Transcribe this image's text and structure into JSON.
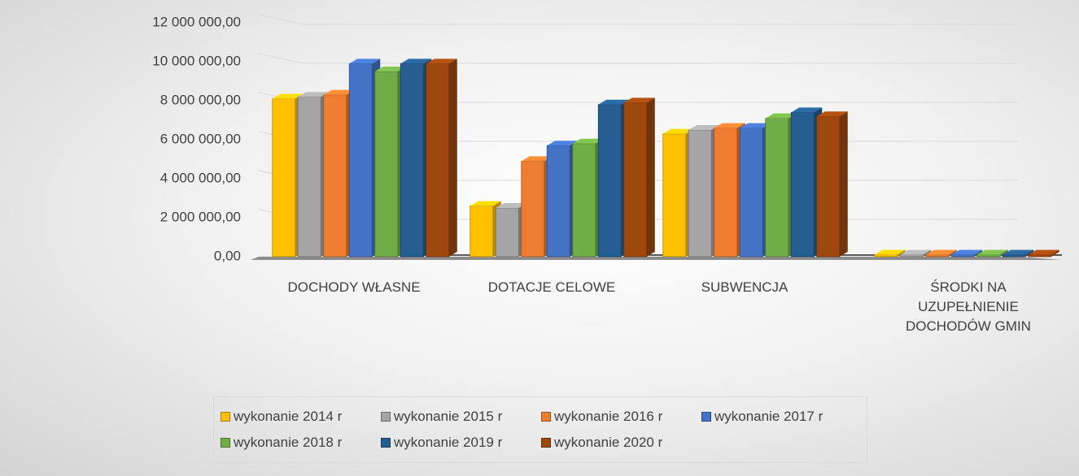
{
  "chart_data": {
    "type": "bar3d",
    "categories": [
      "DOCHODY WŁASNE",
      "DOTACJE CELOWE",
      "SUBWENCJA",
      "ŚRODKI NA UZUPEŁNIENIE DOCHODÓW GMIN"
    ],
    "series": [
      {
        "name": "wykonanie 2014 r",
        "color": "#ffc000",
        "values": [
          8100000,
          2600000,
          6300000,
          100000
        ]
      },
      {
        "name": "wykonanie 2015 r",
        "color": "#a5a5a5",
        "values": [
          8200000,
          2500000,
          6500000,
          100000
        ]
      },
      {
        "name": "wykonanie 2016 r",
        "color": "#ed7d31",
        "values": [
          8300000,
          4900000,
          6600000,
          100000
        ]
      },
      {
        "name": "wykonanie 2017 r",
        "color": "#4472c4",
        "values": [
          9900000,
          5700000,
          6600000,
          100000
        ]
      },
      {
        "name": "wykonanie 2018 r",
        "color": "#70ad47",
        "values": [
          9500000,
          5800000,
          7100000,
          100000
        ]
      },
      {
        "name": "wykonanie 2019 r",
        "color": "#255e91",
        "values": [
          9900000,
          7800000,
          7400000,
          100000
        ]
      },
      {
        "name": "wykonanie 2020 r",
        "color": "#9e480e",
        "values": [
          9900000,
          7900000,
          7200000,
          100000
        ]
      }
    ],
    "ylim": [
      0,
      12000000
    ],
    "yticks": [
      {
        "value": 0,
        "label": "0,00"
      },
      {
        "value": 2000000,
        "label": "2 000 000,00"
      },
      {
        "value": 4000000,
        "label": "4 000 000,00"
      },
      {
        "value": 6000000,
        "label": "6 000 000,00"
      },
      {
        "value": 8000000,
        "label": "8 000 000,00"
      },
      {
        "value": 10000000,
        "label": "10 000 000,00"
      },
      {
        "value": 12000000,
        "label": "12 000 000,00"
      }
    ],
    "grid": true
  }
}
